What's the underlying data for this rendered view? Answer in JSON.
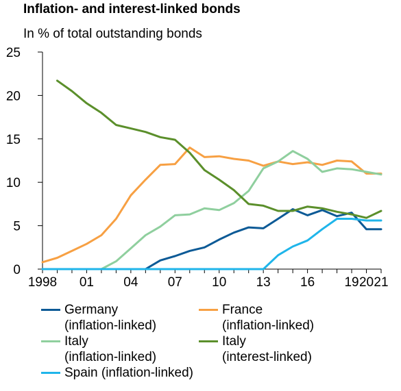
{
  "title": "Inflation- and interest-linked bonds",
  "subtitle": "In % of total outstanding bonds",
  "chart_data": {
    "type": "line",
    "title": "Inflation- and interest-linked bonds",
    "subtitle": "In % of total outstanding bonds",
    "xlabel": "",
    "ylabel": "",
    "xlim": [
      1998,
      2021
    ],
    "ylim": [
      0,
      25
    ],
    "yticks": [
      0,
      5,
      10,
      15,
      20,
      25
    ],
    "xtick_labels": [
      {
        "x": 1998,
        "label": "1998"
      },
      {
        "x": 2001,
        "label": "01"
      },
      {
        "x": 2004,
        "label": "04"
      },
      {
        "x": 2007,
        "label": "07"
      },
      {
        "x": 2010,
        "label": "10"
      },
      {
        "x": 2013,
        "label": "13"
      },
      {
        "x": 2016,
        "label": "16"
      },
      {
        "x": 2019,
        "label": "19"
      },
      {
        "x": 2020,
        "label": "20"
      },
      {
        "x": 2021,
        "label": "21"
      }
    ],
    "grid": "horizontal",
    "legend_position": "bottom",
    "x": [
      1998,
      1999,
      2000,
      2001,
      2002,
      2003,
      2004,
      2005,
      2006,
      2007,
      2008,
      2009,
      2010,
      2011,
      2012,
      2013,
      2014,
      2015,
      2016,
      2017,
      2018,
      2019,
      2020,
      2021
    ],
    "series": [
      {
        "name": "Germany (inflation-linked)",
        "legend_lines": [
          "Germany",
          "(inflation-linked)"
        ],
        "color": "#0c5a96",
        "values": [
          0,
          0,
          0,
          0,
          0,
          0,
          0,
          0,
          1.0,
          1.5,
          2.1,
          2.5,
          3.4,
          4.2,
          4.8,
          4.7,
          5.8,
          6.9,
          6.2,
          6.8,
          6.1,
          6.5,
          4.6,
          4.6
        ]
      },
      {
        "name": "France (inflation-linked)",
        "legend_lines": [
          "France",
          "(inflation-linked)"
        ],
        "color": "#f7a043",
        "values": [
          0.8,
          1.3,
          2.1,
          2.9,
          3.9,
          5.8,
          8.5,
          10.3,
          12.0,
          12.1,
          14.0,
          12.9,
          13.0,
          12.7,
          12.5,
          11.9,
          12.4,
          12.1,
          12.3,
          12.0,
          12.5,
          12.4,
          11.0,
          11.0
        ]
      },
      {
        "name": "Italy (inflation-linked)",
        "legend_lines": [
          "Italy",
          "(inflation-linked)"
        ],
        "color": "#8fcf9e",
        "values": [
          0,
          0,
          0,
          0,
          0,
          0.9,
          2.4,
          3.9,
          4.9,
          6.2,
          6.3,
          7.0,
          6.8,
          7.6,
          9.0,
          11.6,
          12.4,
          13.6,
          12.7,
          11.2,
          11.6,
          11.5,
          11.2,
          10.9
        ]
      },
      {
        "name": "Italy (interest-linked)",
        "legend_lines": [
          "Italy",
          "(interest-linked)"
        ],
        "color": "#5b8f2b",
        "values": [
          null,
          21.7,
          20.5,
          19.1,
          18.0,
          16.6,
          16.2,
          15.8,
          15.2,
          14.9,
          13.4,
          11.4,
          10.3,
          9.1,
          7.5,
          7.3,
          6.7,
          6.7,
          7.2,
          7.0,
          6.6,
          6.3,
          5.9,
          6.7
        ]
      },
      {
        "name": "Spain (inflation-linked)",
        "legend_lines": [
          "Spain (inflation-linked)"
        ],
        "color": "#1fb5ea",
        "values": [
          0,
          0,
          0,
          0,
          0,
          0,
          0,
          0,
          0,
          0,
          0,
          0,
          0,
          0,
          0,
          0,
          1.6,
          2.6,
          3.3,
          4.6,
          5.8,
          5.8,
          5.6,
          5.6
        ]
      }
    ]
  }
}
